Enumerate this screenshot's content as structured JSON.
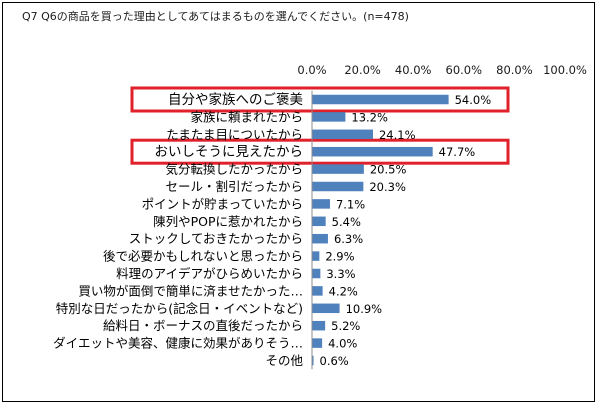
{
  "chart_data": {
    "type": "bar",
    "orientation": "horizontal",
    "title": "Q7 Q6の商品を買った理由としてあてはまるものを選んでください。(n=478)",
    "xlabel": "",
    "ylabel": "",
    "xlim": [
      0,
      100
    ],
    "ticks": [
      "0.0%",
      "20.0%",
      "40.0%",
      "60.0%",
      "80.0%",
      "100.0%"
    ],
    "categories": [
      "自分や家族へのご褒美",
      "家族に頼まれたから",
      "たまたま目についたから",
      "おいしそうに見えたから",
      "気分転換したかったから",
      "セール・割引だったから",
      "ポイントが貯まっていたから",
      "陳列やPOPに惹かれたから",
      "ストックしておきたかったから",
      "後で必要かもしれないと思ったから",
      "料理のアイデアがひらめいたから",
      "買い物が面倒で簡単に済ませたかった…",
      "特別な日だったから(記念日・イベントなど)",
      "給料日・ボーナスの直後だったから",
      "ダイエットや美容、健康に効果がありそう…",
      "その他"
    ],
    "values": [
      54.0,
      13.2,
      24.1,
      47.7,
      20.5,
      20.3,
      7.1,
      5.4,
      6.3,
      2.9,
      3.3,
      4.2,
      10.9,
      5.2,
      4.0,
      0.6
    ],
    "value_labels": [
      "54.0%",
      "13.2%",
      "24.1%",
      "47.7%",
      "20.5%",
      "20.3%",
      "7.1%",
      "5.4%",
      "6.3%",
      "2.9%",
      "3.3%",
      "4.2%",
      "10.9%",
      "5.2%",
      "4.0%",
      "0.6%"
    ],
    "highlighted_indices": [
      0,
      3
    ],
    "grid": false,
    "legend": "none"
  },
  "colors": {
    "bar": "#4f81bd",
    "highlight_border": "#e0202a",
    "axis": "#8c8c8c",
    "frame": "#000000"
  }
}
